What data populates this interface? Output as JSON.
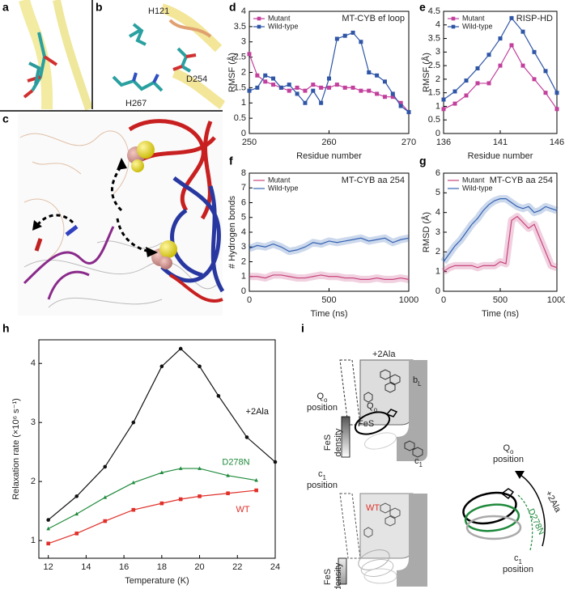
{
  "panel_labels": [
    "a",
    "b",
    "c",
    "d",
    "e",
    "f",
    "g",
    "h",
    "i"
  ],
  "panel_b": {
    "residues": [
      "H121",
      "D254",
      "H267"
    ]
  },
  "chart_data": [
    {
      "type": "line",
      "annotation": "MT-CYB ef loop",
      "xlabel": "Residue number",
      "ylabel": "RMSF (Å)",
      "x": [
        250,
        251,
        252,
        253,
        254,
        255,
        256,
        257,
        258,
        259,
        260,
        261,
        262,
        263,
        264,
        265,
        266,
        267,
        268,
        269,
        270
      ],
      "xlim": [
        250,
        270
      ],
      "xticks": [
        250,
        260,
        270
      ],
      "ylim": [
        0,
        4
      ],
      "yticks": [
        0,
        0.5,
        1,
        1.5,
        2,
        2.5,
        3,
        3.5,
        4
      ],
      "legend": "upper left",
      "series": [
        {
          "name": "Mutant",
          "color": "#c2409c",
          "marker": "square",
          "values": [
            2.6,
            1.9,
            1.7,
            1.6,
            1.5,
            1.4,
            1.5,
            1.4,
            1.6,
            1.5,
            1.5,
            1.6,
            1.5,
            1.5,
            1.4,
            1.4,
            1.3,
            1.2,
            1.2,
            1.0,
            0.7
          ]
        },
        {
          "name": "Wild-type",
          "color": "#2f56a6",
          "marker": "square",
          "values": [
            1.4,
            1.5,
            1.9,
            1.8,
            1.5,
            1.6,
            1.3,
            1.0,
            1.4,
            1.0,
            1.8,
            3.1,
            3.2,
            3.3,
            3.0,
            2.0,
            1.9,
            1.7,
            1.3,
            0.9,
            0.7
          ]
        }
      ]
    },
    {
      "type": "line",
      "annotation": "RISP-HD",
      "xlabel": "Residue number",
      "ylabel": "RMSF (Å)",
      "x": [
        136,
        137,
        138,
        139,
        140,
        141,
        142,
        143,
        144,
        145,
        146
      ],
      "xlim": [
        136,
        146
      ],
      "xticks": [
        136,
        141,
        146
      ],
      "ylim": [
        0,
        4.5
      ],
      "yticks": [
        0,
        0.5,
        1,
        1.5,
        2,
        2.5,
        3,
        3.5,
        4,
        4.5
      ],
      "legend": "upper left",
      "series": [
        {
          "name": "Mutant",
          "color": "#c2409c",
          "marker": "square",
          "values": [
            0.9,
            1.1,
            1.4,
            1.85,
            1.85,
            2.5,
            3.25,
            2.5,
            2.0,
            1.5,
            0.9
          ]
        },
        {
          "name": "Wild-type",
          "color": "#2f56a6",
          "marker": "square",
          "values": [
            1.25,
            1.55,
            1.95,
            2.4,
            2.9,
            3.5,
            4.25,
            3.75,
            3.0,
            2.3,
            1.5
          ]
        }
      ]
    },
    {
      "type": "line",
      "annotation": "MT-CYB aa 254",
      "xlabel": "Time (ns)",
      "ylabel": "# Hydrogen bonds",
      "x": [
        0,
        50,
        100,
        150,
        200,
        250,
        300,
        350,
        400,
        450,
        500,
        550,
        600,
        650,
        700,
        750,
        800,
        850,
        900,
        950,
        1000
      ],
      "xlim": [
        0,
        1000
      ],
      "xticks": [
        0,
        500,
        1000
      ],
      "ylim": [
        0,
        8
      ],
      "yticks": [
        0,
        1,
        2,
        3,
        4,
        5,
        6,
        7,
        8
      ],
      "legend": "upper left",
      "shaded": true,
      "series": [
        {
          "name": "Mutant",
          "color": "#c8457e",
          "values": [
            1.0,
            1.0,
            0.9,
            1.1,
            1.1,
            1.0,
            0.9,
            0.9,
            1.0,
            1.1,
            1.0,
            1.0,
            0.9,
            0.9,
            0.8,
            0.8,
            0.9,
            0.8,
            0.8,
            0.9,
            0.8
          ]
        },
        {
          "name": "Wild-type",
          "color": "#3563b3",
          "values": [
            2.9,
            3.1,
            3.0,
            3.2,
            3.0,
            2.7,
            2.8,
            3.0,
            3.3,
            3.2,
            3.4,
            3.3,
            3.4,
            3.5,
            3.6,
            3.4,
            3.5,
            3.6,
            3.3,
            3.5,
            3.6
          ]
        }
      ]
    },
    {
      "type": "line",
      "annotation": "MT-CYB aa 254",
      "xlabel": "Time (ns)",
      "ylabel": "RMSD (Å)",
      "x": [
        0,
        50,
        100,
        150,
        200,
        250,
        300,
        350,
        400,
        450,
        500,
        550,
        600,
        650,
        700,
        750,
        800,
        850,
        900,
        950,
        1000
      ],
      "xlim": [
        0,
        1000
      ],
      "xticks": [
        0,
        500,
        1000
      ],
      "ylim": [
        0,
        6
      ],
      "yticks": [
        0,
        1,
        2,
        3,
        4,
        5,
        6
      ],
      "legend": "upper left",
      "shaded": true,
      "series": [
        {
          "name": "Mutant",
          "color": "#c8457e",
          "values": [
            1.0,
            1.2,
            1.3,
            1.3,
            1.3,
            1.3,
            1.2,
            1.3,
            1.3,
            1.3,
            1.5,
            1.4,
            3.6,
            3.8,
            3.5,
            3.2,
            3.4,
            2.7,
            2.0,
            1.3,
            1.2
          ]
        },
        {
          "name": "Wild-type",
          "color": "#3563b3",
          "values": [
            1.5,
            1.9,
            2.3,
            2.6,
            3.0,
            3.4,
            3.7,
            4.1,
            4.4,
            4.6,
            4.7,
            4.7,
            4.5,
            4.3,
            4.2,
            4.3,
            4.0,
            4.1,
            4.3,
            4.2,
            4.1
          ]
        }
      ]
    },
    {
      "type": "line",
      "xlabel": "Temperature (K)",
      "ylabel": "Relaxation rate (×10⁶ s⁻¹)",
      "xlim": [
        11.5,
        24
      ],
      "xticks": [
        12,
        14,
        16,
        18,
        20,
        22,
        24
      ],
      "ylim": [
        0.7,
        4.4
      ],
      "yticks": [
        1,
        2,
        3,
        4
      ],
      "series": [
        {
          "name": "+2Ala",
          "color": "#111111",
          "marker": "circle",
          "x": [
            12,
            13.5,
            15,
            16.5,
            18,
            19,
            20,
            21,
            22.5,
            24
          ],
          "values": [
            1.35,
            1.75,
            2.25,
            3.0,
            3.95,
            4.25,
            3.95,
            3.45,
            2.75,
            2.33
          ]
        },
        {
          "name": "D278N",
          "color": "#1f8a3c",
          "marker": "triangle",
          "x": [
            12,
            13.5,
            15,
            16.5,
            18,
            19,
            20,
            21.5,
            23
          ],
          "values": [
            1.2,
            1.45,
            1.73,
            1.98,
            2.15,
            2.22,
            2.22,
            2.1,
            2.02
          ]
        },
        {
          "name": "WT",
          "color": "#e0302a",
          "marker": "square",
          "x": [
            12,
            13.5,
            15,
            16.5,
            18,
            19,
            20,
            21.5,
            23
          ],
          "values": [
            0.95,
            1.12,
            1.33,
            1.52,
            1.63,
            1.7,
            1.75,
            1.8,
            1.85
          ]
        }
      ]
    }
  ],
  "panel_i": {
    "ala_top": "+2Ala",
    "bl": {
      "main": "b",
      "sub": "L"
    },
    "qo_pos_left": {
      "main": "Q",
      "sub": "o",
      "rest": "position"
    },
    "qo_inner": {
      "main": "Q",
      "sub": "o"
    },
    "fes": "FeS",
    "fes_density_top": [
      "FeS",
      "density"
    ],
    "c1_pos_left": {
      "main": "c",
      "sub": "1",
      "rest": "position"
    },
    "c1_inner": {
      "main": "c",
      "sub": "1"
    },
    "wt": "WT",
    "fes_density_bottom": [
      "FeS",
      "density"
    ],
    "qo_pos_right": {
      "main": "Q",
      "sub": "o",
      "rest": "position"
    },
    "ala_arrow": "+2Ala",
    "d278n_arrow": "D278N",
    "c1_pos_right": {
      "main": "c",
      "sub": "1",
      "rest": "position"
    }
  }
}
